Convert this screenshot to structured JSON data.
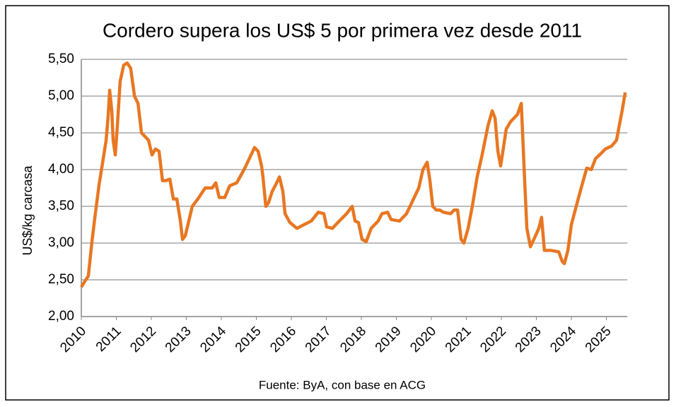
{
  "chart_data": {
    "type": "line",
    "title": "Cordero supera los US$ 5 por primera vez desde 2011",
    "y_label": "US$/kg carcasa",
    "source": "Fuente: ByA, con base en ACG",
    "xlim": [
      2010,
      2025.6
    ],
    "xticks": [
      2010,
      2011,
      2012,
      2013,
      2014,
      2015,
      2016,
      2017,
      2018,
      2019,
      2020,
      2021,
      2022,
      2023,
      2024,
      2025
    ],
    "ylim": [
      2,
      5.5
    ],
    "yticks": [
      {
        "value": 2,
        "label": "2,00"
      },
      {
        "value": 2.5,
        "label": "2,50"
      },
      {
        "value": 3,
        "label": "3,00"
      },
      {
        "value": 3.5,
        "label": "3,50"
      },
      {
        "value": 4,
        "label": "4,00"
      },
      {
        "value": 4.5,
        "label": "4,50"
      },
      {
        "value": 5,
        "label": "5,00"
      },
      {
        "value": 5.5,
        "label": "5,50"
      }
    ],
    "grid": true,
    "series": [
      {
        "name": "Cordero",
        "color": "#e87722",
        "x": [
          2010,
          2010.1,
          2010.2,
          2010.3,
          2010.4,
          2010.51,
          2010.61,
          2010.71,
          2010.77,
          2010.81,
          2010.87,
          2010.91,
          2010.97,
          2011.03,
          2011.11,
          2011.21,
          2011.31,
          2011.41,
          2011.52,
          2011.62,
          2011.72,
          2011.82,
          2011.92,
          2012.02,
          2012.12,
          2012.22,
          2012.32,
          2012.42,
          2012.53,
          2012.63,
          2012.73,
          2012.83,
          2012.89,
          2012.97,
          2013.07,
          2013.17,
          2013.33,
          2013.54,
          2013.74,
          2013.84,
          2013.94,
          2014.1,
          2014.24,
          2014.44,
          2014.65,
          2014.85,
          2014.95,
          2015.05,
          2015.15,
          2015.19,
          2015.27,
          2015.35,
          2015.45,
          2015.56,
          2015.66,
          2015.76,
          2015.82,
          2015.96,
          2016.16,
          2016.36,
          2016.57,
          2016.77,
          2016.93,
          2017.01,
          2017.17,
          2017.37,
          2017.58,
          2017.74,
          2017.82,
          2017.92,
          2018.02,
          2018.14,
          2018.28,
          2018.48,
          2018.59,
          2018.75,
          2018.85,
          2019.09,
          2019.29,
          2019.49,
          2019.64,
          2019.76,
          2019.88,
          2019.96,
          2020.04,
          2020.14,
          2020.24,
          2020.34,
          2020.55,
          2020.65,
          2020.75,
          2020.85,
          2020.93,
          2021.05,
          2021.17,
          2021.31,
          2021.45,
          2021.62,
          2021.74,
          2021.82,
          2021.9,
          2021.98,
          2022.06,
          2022.14,
          2022.26,
          2022.46,
          2022.57,
          2022.67,
          2022.73,
          2022.83,
          2022.93,
          2023.07,
          2023.15,
          2023.23,
          2023.43,
          2023.64,
          2023.74,
          2023.8,
          2023.9,
          2024,
          2024.14,
          2024.28,
          2024.44,
          2024.57,
          2024.69,
          2024.85,
          2024.97,
          2025.15,
          2025.29,
          2025.37,
          2025.45,
          2025.54
        ],
        "values": [
          2.4,
          2.48,
          2.55,
          3.0,
          3.4,
          3.8,
          4.1,
          4.4,
          4.75,
          5.08,
          4.8,
          4.4,
          4.2,
          4.6,
          5.2,
          5.42,
          5.45,
          5.38,
          5.0,
          4.9,
          4.5,
          4.45,
          4.4,
          4.2,
          4.28,
          4.25,
          3.85,
          3.85,
          3.87,
          3.6,
          3.6,
          3.3,
          3.05,
          3.1,
          3.3,
          3.5,
          3.6,
          3.75,
          3.75,
          3.82,
          3.62,
          3.62,
          3.78,
          3.82,
          4.0,
          4.2,
          4.3,
          4.25,
          4.05,
          3.9,
          3.5,
          3.55,
          3.7,
          3.8,
          3.9,
          3.7,
          3.4,
          3.28,
          3.2,
          3.25,
          3.3,
          3.42,
          3.4,
          3.22,
          3.2,
          3.3,
          3.4,
          3.5,
          3.3,
          3.28,
          3.05,
          3.02,
          3.2,
          3.3,
          3.4,
          3.42,
          3.32,
          3.3,
          3.4,
          3.6,
          3.75,
          4.0,
          4.1,
          3.85,
          3.5,
          3.45,
          3.45,
          3.42,
          3.4,
          3.45,
          3.45,
          3.05,
          3.0,
          3.2,
          3.5,
          3.9,
          4.2,
          4.6,
          4.8,
          4.7,
          4.25,
          4.05,
          4.3,
          4.55,
          4.65,
          4.75,
          4.9,
          3.8,
          3.2,
          2.95,
          3.05,
          3.2,
          3.35,
          2.9,
          2.9,
          2.88,
          2.75,
          2.72,
          2.9,
          3.25,
          3.5,
          3.75,
          4.02,
          4.0,
          4.15,
          4.22,
          4.28,
          4.32,
          4.4,
          4.6,
          4.8,
          5.05
        ]
      }
    ]
  }
}
